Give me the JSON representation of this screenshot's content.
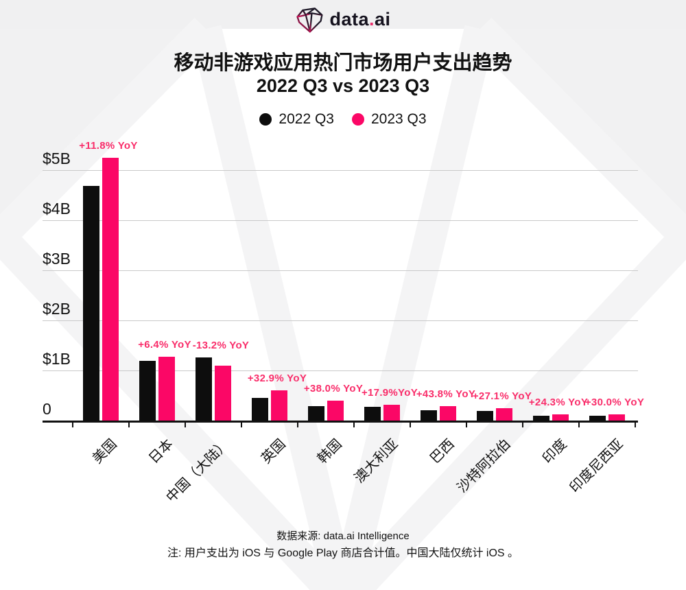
{
  "brand": {
    "logo_text_1": "data",
    "logo_dot": ".",
    "logo_text_2": "ai"
  },
  "header": {
    "title_line1": "移动非游戏应用热门市场用户支出趋势",
    "title_line2": "2022 Q3 vs 2023 Q3"
  },
  "legend": [
    {
      "label": "2022 Q3",
      "color": "#0d0d0d"
    },
    {
      "label": "2023 Q3",
      "color": "#fb0766"
    }
  ],
  "chart_data": {
    "type": "bar",
    "title": "移动非游戏应用热门市场用户支出趋势 2022 Q3 vs 2023 Q3",
    "unit": "USD billions",
    "categories": [
      "美国",
      "日本",
      "中国（大陆）",
      "英国",
      "韩国",
      "澳大利亚",
      "巴西",
      "沙特阿拉伯",
      "印度",
      "印度尼西亚"
    ],
    "series": [
      {
        "name": "2022 Q3",
        "color": "#0d0d0d",
        "values": [
          4.69,
          1.19,
          1.26,
          0.45,
          0.29,
          0.27,
          0.2,
          0.19,
          0.1,
          0.1
        ]
      },
      {
        "name": "2023 Q3",
        "color": "#fb0766",
        "values": [
          5.24,
          1.27,
          1.1,
          0.6,
          0.4,
          0.32,
          0.29,
          0.24,
          0.12,
          0.13
        ]
      }
    ],
    "yoy_labels": [
      "+11.8% YoY",
      "+6.4% YoY",
      "-13.2% YoY",
      "+32.9% YoY",
      "+38.0% YoY",
      "+17.9%YoY",
      "+43.8% YoY",
      "+27.1% YoY",
      "+24.3% YoY",
      "+30.0% YoY"
    ],
    "yoy_color": "#f92d6a",
    "y_ticks": [
      {
        "label": "$5B",
        "value": 5
      },
      {
        "label": "$4B",
        "value": 4
      },
      {
        "label": "$3B",
        "value": 3
      },
      {
        "label": "$2B",
        "value": 2
      },
      {
        "label": "$1B",
        "value": 1
      },
      {
        "label": "0",
        "value": 0
      }
    ],
    "ylim": [
      0,
      5.5
    ],
    "grid": true,
    "legend_position": "top"
  },
  "footer": {
    "source": "数据来源: data.ai Intelligence",
    "note": "注: 用户支出为 iOS 与 Google Play 商店合计值。中国大陆仅统计 iOS 。"
  }
}
